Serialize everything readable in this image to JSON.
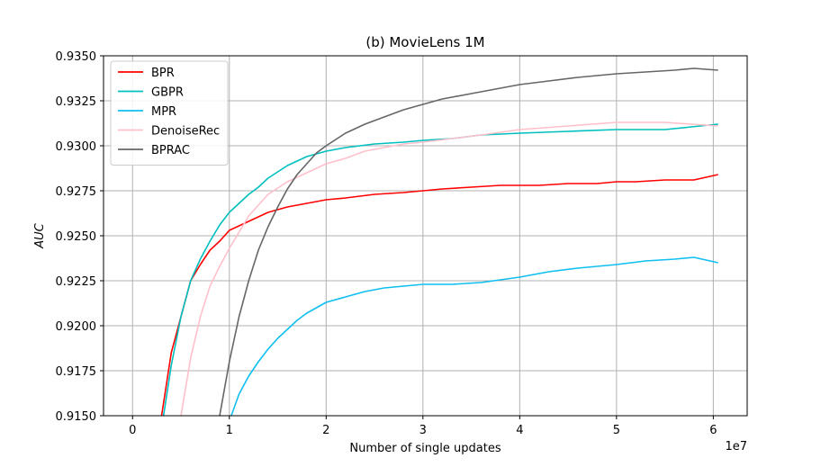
{
  "chart_data": {
    "type": "line",
    "title": "(b) MovieLens 1M",
    "xlabel": "Number of single updates",
    "ylabel": "AUC",
    "x_offset_label": "1e7",
    "xlim": [
      -3000000,
      63500000
    ],
    "ylim": [
      0.915,
      0.935
    ],
    "x_ticks": [
      0,
      10000000,
      20000000,
      30000000,
      40000000,
      50000000,
      60000000
    ],
    "x_tick_labels": [
      "0",
      "1",
      "2",
      "3",
      "4",
      "5",
      "6"
    ],
    "y_ticks": [
      0.915,
      0.9175,
      0.92,
      0.9225,
      0.925,
      0.9275,
      0.93,
      0.9325,
      0.935
    ],
    "y_tick_labels": [
      "0.9150",
      "0.9175",
      "0.9200",
      "0.9225",
      "0.9250",
      "0.9275",
      "0.9300",
      "0.9325",
      "0.9350"
    ],
    "grid": true,
    "legend_position": "top-left",
    "series": [
      {
        "name": "BPR",
        "color": "#ff0000",
        "x": [
          3000000,
          4000000,
          5000000,
          6000000,
          7000000,
          8000000,
          9000000,
          10000000,
          12000000,
          14000000,
          16000000,
          18000000,
          20000000,
          22000000,
          25000000,
          28000000,
          30000000,
          32000000,
          35000000,
          38000000,
          40000000,
          42000000,
          45000000,
          48000000,
          50000000,
          52000000,
          55000000,
          58000000,
          60500000
        ],
        "y": [
          0.915,
          0.9185,
          0.9205,
          0.9225,
          0.9234,
          0.9242,
          0.9247,
          0.9253,
          0.9258,
          0.9263,
          0.9266,
          0.9268,
          0.927,
          0.9271,
          0.9273,
          0.9274,
          0.9275,
          0.9276,
          0.9277,
          0.9278,
          0.9278,
          0.9278,
          0.9279,
          0.9279,
          0.928,
          0.928,
          0.9281,
          0.9281,
          0.9284
        ]
      },
      {
        "name": "GBPR",
        "color": "#00bfbf",
        "x": [
          3200000,
          4000000,
          5000000,
          6000000,
          7000000,
          8000000,
          9000000,
          10000000,
          11000000,
          12000000,
          13000000,
          14000000,
          16000000,
          18000000,
          20000000,
          22000000,
          25000000,
          28000000,
          30000000,
          33000000,
          36000000,
          40000000,
          45000000,
          50000000,
          55000000,
          60500000
        ],
        "y": [
          0.915,
          0.9178,
          0.9205,
          0.9225,
          0.9237,
          0.9247,
          0.9256,
          0.9263,
          0.9268,
          0.9273,
          0.9277,
          0.9282,
          0.9289,
          0.9294,
          0.9297,
          0.9299,
          0.9301,
          0.9302,
          0.9303,
          0.9304,
          0.9306,
          0.9307,
          0.9308,
          0.9309,
          0.9309,
          0.9312
        ]
      },
      {
        "name": "MPR",
        "color": "#0ebff0",
        "x": [
          10200000,
          11000000,
          12000000,
          13000000,
          14000000,
          15000000,
          16000000,
          17000000,
          18000000,
          19000000,
          20000000,
          22000000,
          24000000,
          26000000,
          28000000,
          30000000,
          33000000,
          36000000,
          40000000,
          43000000,
          46000000,
          50000000,
          53000000,
          56000000,
          58000000,
          60500000
        ],
        "y": [
          0.915,
          0.9162,
          0.9172,
          0.918,
          0.9187,
          0.9193,
          0.9198,
          0.9203,
          0.9207,
          0.921,
          0.9213,
          0.9216,
          0.9219,
          0.9221,
          0.9222,
          0.9223,
          0.9223,
          0.9224,
          0.9227,
          0.923,
          0.9232,
          0.9234,
          0.9236,
          0.9237,
          0.9238,
          0.9235
        ]
      },
      {
        "name": "DenoiseRec",
        "color": "#ffc0cb",
        "x": [
          5000000,
          6000000,
          7000000,
          8000000,
          9000000,
          10000000,
          11000000,
          12000000,
          13000000,
          14000000,
          16000000,
          18000000,
          20000000,
          22000000,
          24000000,
          26000000,
          28000000,
          30000000,
          33000000,
          36000000,
          40000000,
          45000000,
          50000000,
          55000000,
          60500000
        ],
        "y": [
          0.915,
          0.9182,
          0.9205,
          0.9222,
          0.9233,
          0.9243,
          0.9252,
          0.9261,
          0.9267,
          0.9273,
          0.928,
          0.9285,
          0.929,
          0.9293,
          0.9297,
          0.9299,
          0.9301,
          0.9302,
          0.9304,
          0.9306,
          0.9309,
          0.9311,
          0.9313,
          0.9313,
          0.9311
        ]
      },
      {
        "name": "BPRAC",
        "color": "#666666",
        "x": [
          9000000,
          10000000,
          11000000,
          12000000,
          13000000,
          14000000,
          15000000,
          16000000,
          17000000,
          18000000,
          19000000,
          20000000,
          22000000,
          24000000,
          26000000,
          28000000,
          30000000,
          32000000,
          35000000,
          38000000,
          40000000,
          43000000,
          46000000,
          50000000,
          53000000,
          56000000,
          58000000,
          60500000
        ],
        "y": [
          0.915,
          0.918,
          0.9205,
          0.9225,
          0.9242,
          0.9255,
          0.9266,
          0.9276,
          0.9284,
          0.929,
          0.9296,
          0.93,
          0.9307,
          0.9312,
          0.9316,
          0.932,
          0.9323,
          0.9326,
          0.9329,
          0.9332,
          0.9334,
          0.9336,
          0.9338,
          0.934,
          0.9341,
          0.9342,
          0.9343,
          0.9342
        ]
      }
    ]
  }
}
